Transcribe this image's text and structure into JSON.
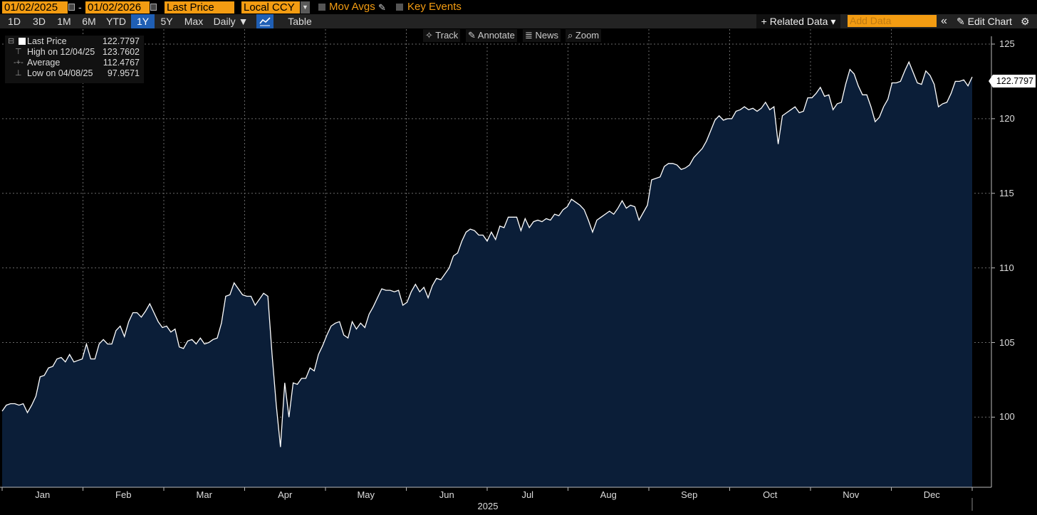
{
  "toolbar": {
    "start_date": "01/02/2025",
    "end_date": "01/02/2026",
    "separator": "-",
    "field": "Last Price",
    "currency": "Local CCY",
    "mov_avgs": "Mov Avgs",
    "key_events": "Key Events",
    "periods": [
      "1D",
      "3D",
      "1M",
      "6M",
      "YTD",
      "1Y",
      "5Y",
      "Max"
    ],
    "active_period": "1Y",
    "frequency": "Daily ▼",
    "table": "Table",
    "related_data": "+ Related Data ▾",
    "add_data_placeholder": "Add Data",
    "collapse": "«",
    "edit_chart": "Edit Chart",
    "accent_color": "#f39c12",
    "active_color": "#1f5fb5"
  },
  "chart_tools": {
    "track": "Track",
    "annotate": "Annotate",
    "news": "News",
    "zoom": "Zoom"
  },
  "legend": {
    "last_price": {
      "label": "Last Price",
      "value": "122.7797"
    },
    "high": {
      "label": "High on 12/04/25",
      "value": "123.7602"
    },
    "average": {
      "label": "Average",
      "value": "112.4767"
    },
    "low": {
      "label": "Low on 04/08/25",
      "value": "97.9571"
    }
  },
  "last_value_tag": "122.7797",
  "chart_data": {
    "type": "area",
    "xlabel": "2025",
    "ylabel": "",
    "x_tick_labels": [
      "Jan",
      "Feb",
      "Mar",
      "Apr",
      "May",
      "Jun",
      "Jul",
      "Aug",
      "Sep",
      "Oct",
      "Nov",
      "Dec"
    ],
    "y_ticks": [
      100,
      105,
      110,
      115,
      120,
      125
    ],
    "ylim": [
      95.3,
      126.0
    ],
    "grid": true,
    "line_color": "#ffffff",
    "fill_color": "#0b1e38",
    "series": [
      {
        "values": [
          100.4,
          100.8,
          100.9,
          100.9,
          100.8,
          100.9,
          100.3,
          100.8,
          101.4,
          102.7,
          102.8,
          103.3,
          103.4,
          103.9,
          104.0,
          103.7,
          104.2,
          103.7,
          103.8,
          103.9,
          104.9,
          103.9,
          103.9,
          104.9,
          105.2,
          104.9,
          104.9,
          105.8,
          106.1,
          105.4,
          106.4,
          107.0,
          107.0,
          106.7,
          107.1,
          107.6,
          107.0,
          106.4,
          106.0,
          106.1,
          105.7,
          105.9,
          104.7,
          104.6,
          105.1,
          105.2,
          104.9,
          105.3,
          104.9,
          105.0,
          105.2,
          105.3,
          106.3,
          108.1,
          108.2,
          109.0,
          108.6,
          108.2,
          108.1,
          108.1,
          107.5,
          107.9,
          108.3,
          108.1,
          104.2,
          100.8,
          98.0,
          102.3,
          100.0,
          102.3,
          102.2,
          102.6,
          102.6,
          103.3,
          103.1,
          104.2,
          104.8,
          105.5,
          106.1,
          106.3,
          106.4,
          105.5,
          105.3,
          106.4,
          105.9,
          106.3,
          106.0,
          106.9,
          107.4,
          108.0,
          108.6,
          108.5,
          108.5,
          108.4,
          108.5,
          107.5,
          107.7,
          108.4,
          108.9,
          108.4,
          108.7,
          108.0,
          108.8,
          109.3,
          109.2,
          109.6,
          110.0,
          110.8,
          111.0,
          111.8,
          112.4,
          112.6,
          112.5,
          112.2,
          112.2,
          111.8,
          112.4,
          111.9,
          112.8,
          112.7,
          113.4,
          113.4,
          113.4,
          112.5,
          113.3,
          112.7,
          113.1,
          113.2,
          113.1,
          113.3,
          113.2,
          113.6,
          113.5,
          113.9,
          114.1,
          114.6,
          114.4,
          114.2,
          113.9,
          113.2,
          112.4,
          113.2,
          113.4,
          113.6,
          113.8,
          113.6,
          114.0,
          114.5,
          114.0,
          114.2,
          114.1,
          113.2,
          113.7,
          114.2,
          115.9,
          116.0,
          116.1,
          116.8,
          117.0,
          117.0,
          116.9,
          116.6,
          116.7,
          116.9,
          117.4,
          117.7,
          118.0,
          118.5,
          119.2,
          119.9,
          120.2,
          119.9,
          120.0,
          120.0,
          120.5,
          120.6,
          120.8,
          120.6,
          120.7,
          120.5,
          120.7,
          121.1,
          120.6,
          120.8,
          118.3,
          120.2,
          120.4,
          120.6,
          120.8,
          120.4,
          120.5,
          121.4,
          121.4,
          121.7,
          122.1,
          121.5,
          121.6,
          120.6,
          121.0,
          121.1,
          122.3,
          123.3,
          123.0,
          122.2,
          121.6,
          121.6,
          120.8,
          119.8,
          120.1,
          120.8,
          121.3,
          122.4,
          122.4,
          122.5,
          123.2,
          123.8,
          123.1,
          122.4,
          122.3,
          123.2,
          122.9,
          122.3,
          120.8,
          121.0,
          121.1,
          121.7,
          122.5,
          122.5,
          122.6,
          122.2,
          122.8
        ]
      }
    ]
  }
}
